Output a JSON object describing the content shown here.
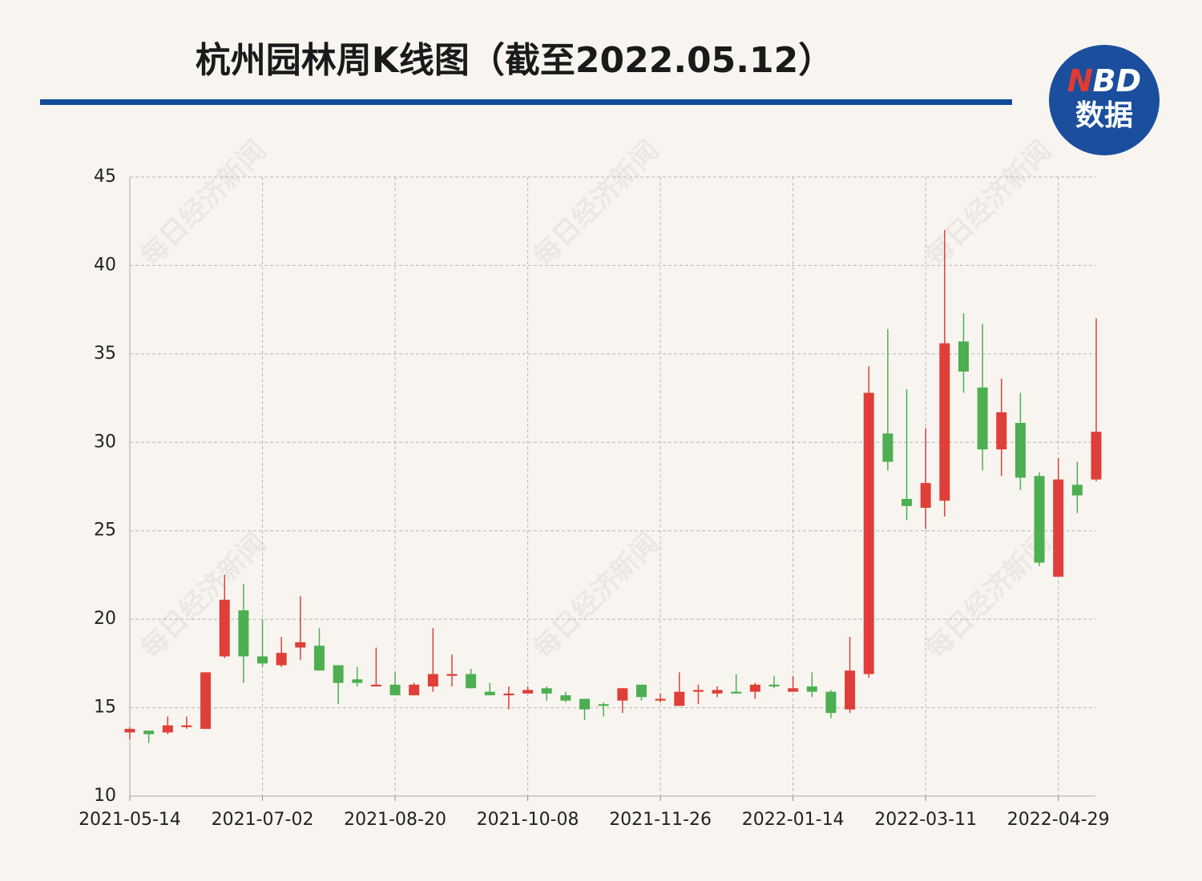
{
  "chart_data": {
    "type": "candlestick",
    "title": "杭州园林周K线图（截至2022.05.12）",
    "categories": [
      "2021-05-14",
      null,
      null,
      null,
      null,
      null,
      null,
      "2021-07-02",
      null,
      null,
      null,
      null,
      null,
      null,
      "2021-08-20",
      null,
      null,
      null,
      null,
      null,
      null,
      "2021-10-08",
      null,
      null,
      null,
      null,
      null,
      null,
      "2021-11-26",
      null,
      null,
      null,
      null,
      null,
      null,
      "2022-01-14",
      null,
      null,
      null,
      null,
      null,
      null,
      "2022-03-11",
      null,
      null,
      null,
      null,
      null,
      null,
      "2022-04-29",
      null,
      null
    ],
    "open": [
      13.6,
      13.7,
      13.6,
      13.9,
      13.8,
      17.9,
      20.5,
      17.9,
      17.4,
      18.4,
      18.5,
      17.4,
      16.6,
      16.2,
      16.3,
      15.7,
      16.2,
      16.8,
      16.9,
      15.9,
      15.7,
      15.8,
      16.1,
      15.7,
      15.5,
      15.2,
      15.4,
      16.3,
      15.4,
      15.1,
      15.9,
      15.8,
      15.9,
      15.9,
      16.3,
      15.9,
      16.2,
      15.9,
      14.9,
      16.9,
      30.5,
      26.8,
      26.3,
      26.7,
      35.7,
      33.1,
      29.6,
      31.1,
      28.1,
      22.4,
      27.6,
      27.9
    ],
    "high": [
      13.9,
      13.7,
      14.5,
      14.5,
      17.0,
      22.5,
      22.0,
      20.0,
      19.0,
      21.3,
      19.5,
      17.4,
      17.3,
      18.4,
      17.0,
      16.4,
      19.5,
      18.0,
      17.2,
      16.4,
      16.2,
      16.2,
      16.2,
      15.9,
      15.5,
      15.3,
      16.1,
      16.3,
      15.8,
      17.0,
      16.3,
      16.2,
      16.9,
      16.4,
      16.8,
      16.8,
      17.0,
      16.0,
      19.0,
      34.3,
      36.4,
      33.0,
      30.8,
      42.0,
      37.3,
      36.7,
      33.6,
      32.8,
      28.3,
      29.1,
      28.9,
      37.0
    ],
    "low": [
      13.2,
      13.0,
      13.5,
      13.8,
      13.8,
      17.8,
      16.4,
      17.3,
      17.3,
      17.7,
      17.1,
      15.2,
      16.2,
      16.2,
      15.7,
      15.7,
      15.9,
      16.2,
      16.1,
      15.7,
      14.9,
      15.8,
      15.4,
      15.3,
      14.3,
      14.5,
      14.7,
      15.4,
      15.3,
      15.1,
      15.2,
      15.6,
      15.8,
      15.5,
      16.1,
      15.9,
      15.6,
      14.4,
      14.7,
      16.7,
      28.4,
      25.6,
      25.1,
      25.8,
      32.8,
      28.4,
      28.1,
      27.3,
      23.0,
      22.4,
      26.0,
      27.8
    ],
    "close": [
      13.8,
      13.5,
      14.0,
      14.0,
      17.0,
      21.1,
      17.9,
      17.5,
      18.1,
      18.7,
      17.1,
      16.4,
      16.4,
      16.3,
      15.7,
      16.3,
      16.9,
      16.9,
      16.1,
      15.7,
      15.8,
      16.0,
      15.8,
      15.4,
      14.9,
      15.1,
      16.1,
      15.6,
      15.5,
      15.9,
      16.0,
      16.0,
      15.8,
      16.3,
      16.2,
      16.1,
      15.9,
      14.7,
      17.1,
      32.8,
      28.9,
      26.4,
      27.7,
      35.6,
      34.0,
      29.6,
      31.7,
      28.0,
      23.2,
      27.9,
      27.0,
      30.6
    ],
    "up_color": "#df3f38",
    "down_color": "#4daf52",
    "ylim": [
      10,
      45
    ],
    "yticks": [
      10,
      15,
      20,
      25,
      30,
      35,
      40,
      45
    ],
    "grid": true
  },
  "logo": {
    "mark": "N",
    "rest": "BD",
    "sub": "数据"
  },
  "watermark": "每日经济新闻"
}
